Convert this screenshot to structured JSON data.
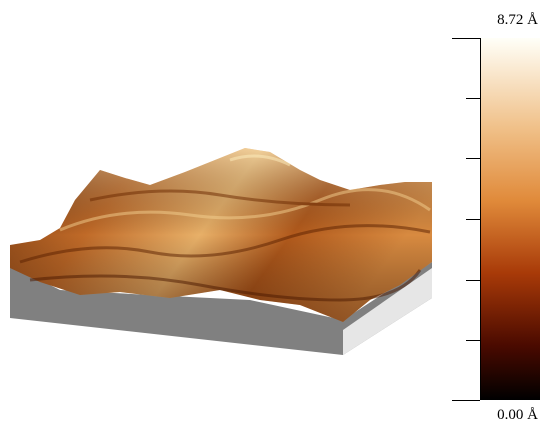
{
  "colorbar": {
    "max_label": "8.72 Å",
    "min_label": "0.00 Å"
  }
}
